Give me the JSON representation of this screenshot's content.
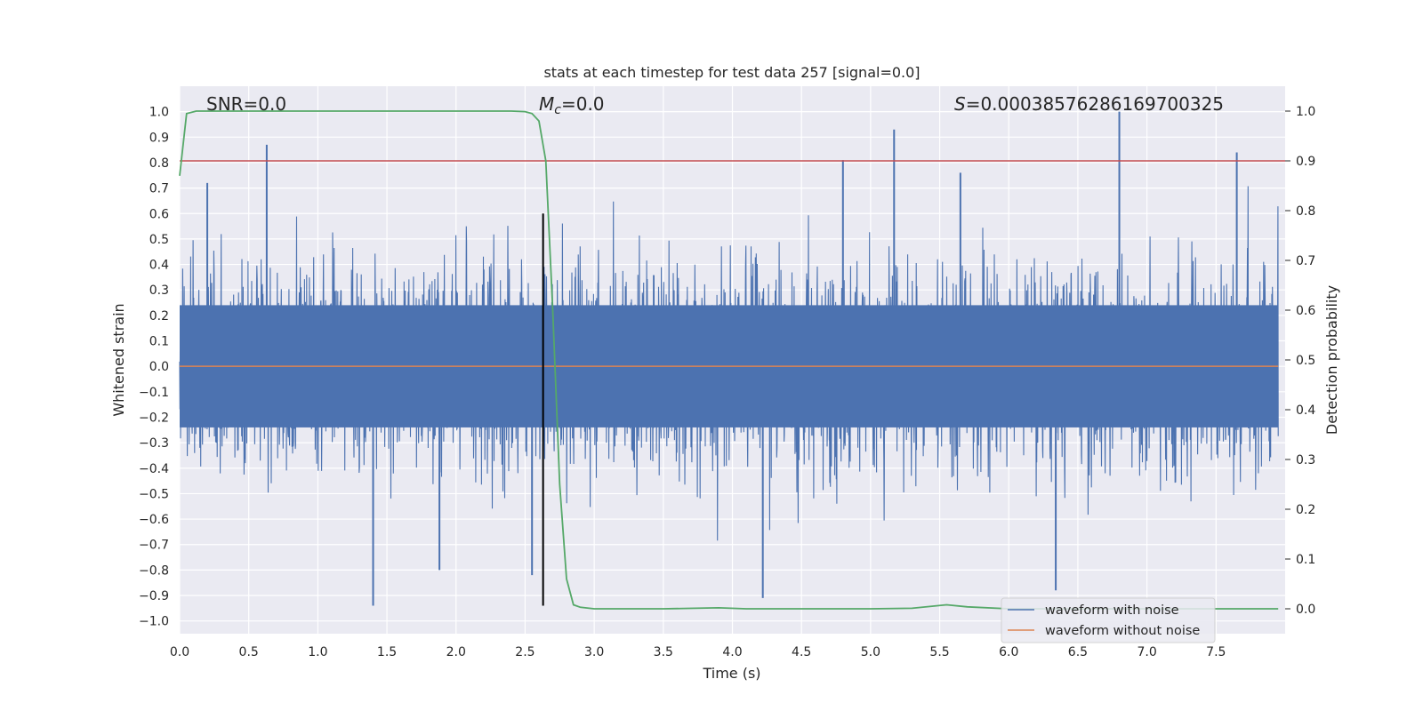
{
  "chart_data": {
    "type": "line",
    "title": "stats at each timestep for test data 257 [signal=0.0]",
    "xlabel": "Time (s)",
    "ylabel": "Whitened strain",
    "y2label": "Detection probability",
    "xlim": [
      0.0,
      8.0
    ],
    "ylim": [
      -1.05,
      1.1
    ],
    "y2lim": [
      -0.05,
      1.05
    ],
    "xticks": [
      "0.0",
      "0.5",
      "1.0",
      "1.5",
      "2.0",
      "2.5",
      "3.0",
      "3.5",
      "4.0",
      "4.5",
      "5.0",
      "5.5",
      "6.0",
      "6.5",
      "7.0",
      "7.5"
    ],
    "xtick_values": [
      0,
      0.5,
      1,
      1.5,
      2,
      2.5,
      3,
      3.5,
      4,
      4.5,
      5,
      5.5,
      6,
      6.5,
      7,
      7.5
    ],
    "yticks": [
      "1.0",
      "0.9",
      "0.8",
      "0.7",
      "0.6",
      "0.5",
      "0.4",
      "0.3",
      "0.2",
      "0.1",
      "0.0",
      "−0.1",
      "−0.2",
      "−0.3",
      "−0.4",
      "−0.5",
      "−0.6",
      "−0.7",
      "−0.8",
      "−0.9",
      "−1.0"
    ],
    "ytick_values": [
      1.0,
      0.9,
      0.8,
      0.7,
      0.6,
      0.5,
      0.4,
      0.3,
      0.2,
      0.1,
      0.0,
      -0.1,
      -0.2,
      -0.3,
      -0.4,
      -0.5,
      -0.6,
      -0.7,
      -0.8,
      -0.9,
      -1.0
    ],
    "y2ticks": [
      "1.0",
      "0.9",
      "0.8",
      "0.7",
      "0.6",
      "0.5",
      "0.4",
      "0.3",
      "0.2",
      "0.1",
      "0.0"
    ],
    "y2tick_values": [
      1.0,
      0.9,
      0.8,
      0.7,
      0.6,
      0.5,
      0.4,
      0.3,
      0.2,
      0.1,
      0.0
    ],
    "grid": true,
    "legend_position": "bottom-right",
    "annotations": {
      "snr": "SNR=0.0",
      "mc_prefix": "M",
      "mc_sub": "c",
      "mc_suffix": "=0.0",
      "s_prefix": "S",
      "s_suffix": "=0.00038576286169700325"
    },
    "series": [
      {
        "name": "waveform with noise",
        "color": "#4c72b0",
        "description_note": "dense noise trace",
        "spike_peaks": [
          {
            "x": 0.63,
            "y": 0.87
          },
          {
            "x": 1.4,
            "y": -0.94
          },
          {
            "x": 4.22,
            "y": -0.91
          },
          {
            "x": 5.17,
            "y": 0.93
          },
          {
            "x": 6.8,
            "y": 1.0
          },
          {
            "x": 7.65,
            "y": 0.84
          },
          {
            "x": 4.8,
            "y": 0.81
          },
          {
            "x": 6.34,
            "y": -0.88
          },
          {
            "x": 2.55,
            "y": -0.82
          },
          {
            "x": 5.65,
            "y": 0.76
          },
          {
            "x": 0.2,
            "y": 0.72
          },
          {
            "x": 1.88,
            "y": -0.8
          }
        ]
      },
      {
        "name": "waveform without noise",
        "color": "#dd8452",
        "x": [
          0.0,
          8.0
        ],
        "y": [
          0.0,
          0.0
        ]
      }
    ],
    "detection_probability": {
      "color": "#55a868",
      "x": [
        0.0,
        0.05,
        0.12,
        0.2,
        0.5,
        1.0,
        1.5,
        2.0,
        2.4,
        2.5,
        2.55,
        2.6,
        2.65,
        2.7,
        2.75,
        2.8,
        2.85,
        2.9,
        3.0,
        3.5,
        3.9,
        4.1,
        4.5,
        5.0,
        5.3,
        5.55,
        5.7,
        6.0,
        7.0,
        7.95
      ],
      "y": [
        0.87,
        0.995,
        1.0,
        1.0,
        1.0,
        1.0,
        1.0,
        1.0,
        1.0,
        0.999,
        0.995,
        0.98,
        0.9,
        0.6,
        0.25,
        0.06,
        0.008,
        0.003,
        0.0,
        0.0,
        0.002,
        0.0,
        0.0,
        0.0,
        0.001,
        0.008,
        0.004,
        0.0,
        0.0,
        0.0
      ]
    },
    "threshold": {
      "color": "#c44e52",
      "y2": 0.9
    },
    "event_marker": {
      "color": "#000000",
      "x": 2.63,
      "y_top": 0.6,
      "y_bottom": -0.94
    }
  },
  "legend": {
    "with_noise": "waveform with noise",
    "without_noise": "waveform without noise"
  }
}
